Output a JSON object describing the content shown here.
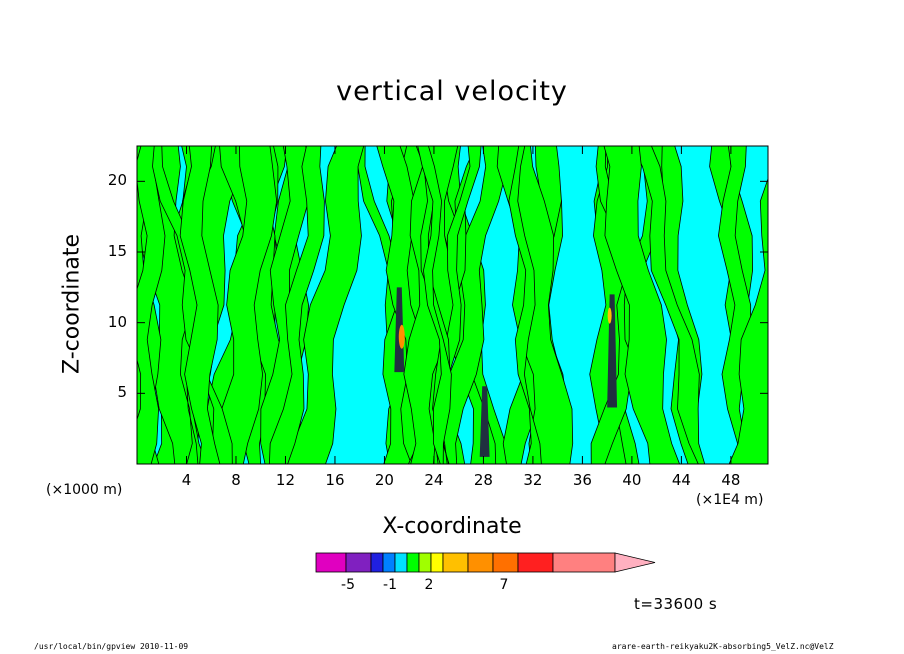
{
  "chart_data": {
    "type": "heatmap",
    "title": "vertical velocity",
    "xlabel": "X-coordinate",
    "ylabel": "Z-coordinate",
    "x_unit_note": "(×1000 m)",
    "x_scale_note": "(×1E4 m)",
    "x_ticks": [
      4,
      8,
      12,
      16,
      20,
      24,
      28,
      32,
      36,
      40,
      44,
      48
    ],
    "y_ticks": [
      5,
      10,
      15,
      20
    ],
    "xlim": [
      0,
      51
    ],
    "ylim": [
      0,
      22.5
    ],
    "background_level_color": "#00ffff",
    "positive_level_color": "#00ff00",
    "colorbar": {
      "colors": [
        "#e000c0",
        "#8020c0",
        "#2020e0",
        "#0080ff",
        "#00e0ff",
        "#00ff00",
        "#a0ff00",
        "#ffff00",
        "#ffc000",
        "#ff9000",
        "#ff7000",
        "#ff2020",
        "#ff8080"
      ],
      "overflow_color": "#ffb0c0",
      "tick_labels": [
        "-5",
        "-1",
        "2",
        "7"
      ]
    },
    "time_label": "t=33600 s"
  },
  "footer": {
    "left": "/usr/local/bin/gpview  2010-11-09",
    "right": "arare-earth-reikyaku2K-absorbing5_VelZ.nc@VelZ"
  }
}
